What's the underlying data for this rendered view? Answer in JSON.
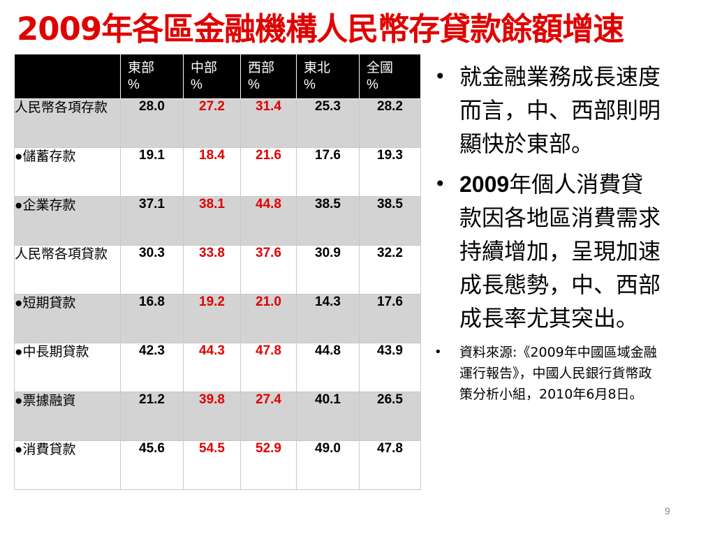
{
  "title": "2009年各區金融機構人民幣存貸款餘額增速",
  "table": {
    "headers": [
      "",
      "東部\n%",
      "中部\n%",
      "西部\n%",
      "東北\n%",
      "全國\n%"
    ],
    "rows": [
      {
        "label": "人民幣各項存款",
        "values": [
          "28.0",
          "27.2",
          "31.4",
          "25.3",
          "28.2"
        ]
      },
      {
        "label": "●儲蓄存款",
        "values": [
          "19.1",
          "18.4",
          "21.6",
          "17.6",
          "19.3"
        ]
      },
      {
        "label": "●企業存款",
        "values": [
          "37.1",
          "38.1",
          "44.8",
          "38.5",
          "38.5"
        ]
      },
      {
        "label": "人民幣各項貸款",
        "values": [
          "30.3",
          "33.8",
          "37.6",
          "30.9",
          "32.2"
        ]
      },
      {
        "label": "●短期貸款",
        "values": [
          "16.8",
          "19.2",
          "21.0",
          "14.3",
          "17.6"
        ]
      },
      {
        "label": "●中長期貸款",
        "values": [
          "42.3",
          "44.3",
          "47.8",
          "44.8",
          "43.9"
        ]
      },
      {
        "label": "●票據融資",
        "values": [
          "21.2",
          "39.8",
          "27.4",
          "40.1",
          "26.5"
        ]
      },
      {
        "label": "●消費貸款",
        "values": [
          "45.6",
          "54.5",
          "52.9",
          "49.0",
          "47.8"
        ]
      }
    ],
    "highlight_color": "#e00000"
  },
  "bullets": {
    "b1": "就金融業務成長速度而言，中、西部則明顯快於東部。",
    "b2_year": "2009",
    "b2_rest": "年個人消費貸款因各地區消費需求持續增加，呈現加速成長態勢，中、西部成長率尤其突出。",
    "source": "資料來源:《2009年中國區域金融運行報告》，中國人民銀行貨幣政策分析小組，2010年6月8日。"
  },
  "page_number": "9"
}
